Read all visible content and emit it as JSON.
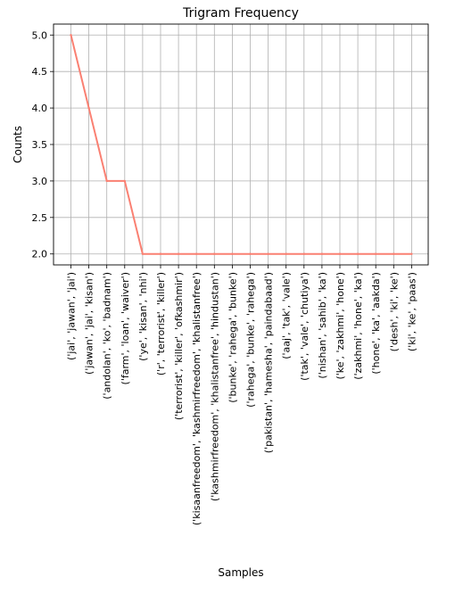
{
  "chart_data": {
    "type": "line",
    "title": "Trigram Frequency",
    "xlabel": "Samples",
    "ylabel": "Counts",
    "ylim": [
      1.85,
      5.15
    ],
    "yticks": [
      2.0,
      2.5,
      3.0,
      3.5,
      4.0,
      4.5,
      5.0
    ],
    "ytick_labels": [
      "2.0",
      "2.5",
      "3.0",
      "3.5",
      "4.0",
      "4.5",
      "5.0"
    ],
    "grid": true,
    "line_color": "#fa8072",
    "categories": [
      "('jai', 'jawan', 'jai')",
      "('jawan', 'jai', 'kisan')",
      "('andolan', 'ko', 'badnam')",
      "('farm', 'loan', 'waiver')",
      "('ye', 'kisan', 'nhi')",
      "('r', 'terrorist', 'killer')",
      "('terrorist', 'killer', 'ofkashmir')",
      "('kisaanfreedom', 'kashmirfreedom', 'khalistanfree')",
      "('kashmirfreedom', 'khalistanfree', 'hindustan')",
      "('bunke', 'rahega', 'bunke')",
      "('rahega', 'bunke', 'rahega')",
      "('pakistan', 'hamesha', 'paindabaad')",
      "('aaj', 'tak', 'vale')",
      "('tak', 'vale', 'chutiya')",
      "('nishan', 'sahib', 'ka')",
      "('ke', 'zakhmi', 'hone')",
      "('zakhmi', 'hone', 'ka')",
      "('hone', 'ka', 'aakda')",
      "('desh', 'ki', 'ke')",
      "('ki', 'ke', 'paas')"
    ],
    "values": [
      5,
      4,
      3,
      3,
      2,
      2,
      2,
      2,
      2,
      2,
      2,
      2,
      2,
      2,
      2,
      2,
      2,
      2,
      2,
      2
    ]
  }
}
